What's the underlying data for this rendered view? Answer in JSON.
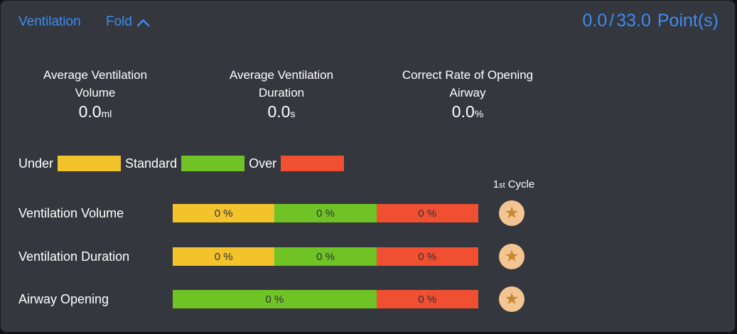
{
  "panel": {
    "title": "Ventilation",
    "fold": {
      "label": "Fold",
      "icon": "chevron-up"
    },
    "score": {
      "earned": "0.0",
      "separator": "/",
      "total": "33.0",
      "unit": "Point(s)"
    }
  },
  "colors": {
    "accent_blue": "#3E8CF0",
    "panel_bg": "#34373D",
    "under_yellow": "#F3C32C",
    "standard_green": "#6FC325",
    "over_red": "#F04F31",
    "badge_bg": "#F2C592",
    "badge_star": "#C8872F"
  },
  "stats": [
    {
      "label_line1": "Average Ventilation",
      "label_line2": "Volume",
      "value": "0.0",
      "unit": "ml"
    },
    {
      "label_line1": "Average Ventilation",
      "label_line2": "Duration",
      "value": "0.0",
      "unit": "s"
    },
    {
      "label_line1": "Correct Rate of Opening",
      "label_line2": "Airway",
      "value": "0.0",
      "unit": "%"
    }
  ],
  "legend": [
    {
      "label": "Under",
      "color": "#F3C32C"
    },
    {
      "label": "Standard",
      "color": "#6FC325"
    },
    {
      "label": "Over",
      "color": "#F04F31"
    }
  ],
  "cycle": {
    "num": "1",
    "suffix": "st",
    "word": "Cycle",
    "badge_icon": "star"
  },
  "rows": [
    {
      "label": "Ventilation Volume",
      "segments": [
        {
          "label": "0 %",
          "color": "#F3C32C",
          "width_pct": 33.333
        },
        {
          "label": "0 %",
          "color": "#6FC325",
          "width_pct": 33.333
        },
        {
          "label": "0 %",
          "color": "#F04F31",
          "width_pct": 33.334
        }
      ]
    },
    {
      "label": "Ventilation Duration",
      "segments": [
        {
          "label": "0 %",
          "color": "#F3C32C",
          "width_pct": 33.333
        },
        {
          "label": "0 %",
          "color": "#6FC325",
          "width_pct": 33.333
        },
        {
          "label": "0 %",
          "color": "#F04F31",
          "width_pct": 33.334
        }
      ]
    },
    {
      "label": "Airway Opening",
      "segments": [
        {
          "label": "0 %",
          "color": "#6FC325",
          "width_pct": 66.666
        },
        {
          "label": "0 %",
          "color": "#F04F31",
          "width_pct": 33.334
        }
      ]
    }
  ],
  "star_glyph": "★"
}
